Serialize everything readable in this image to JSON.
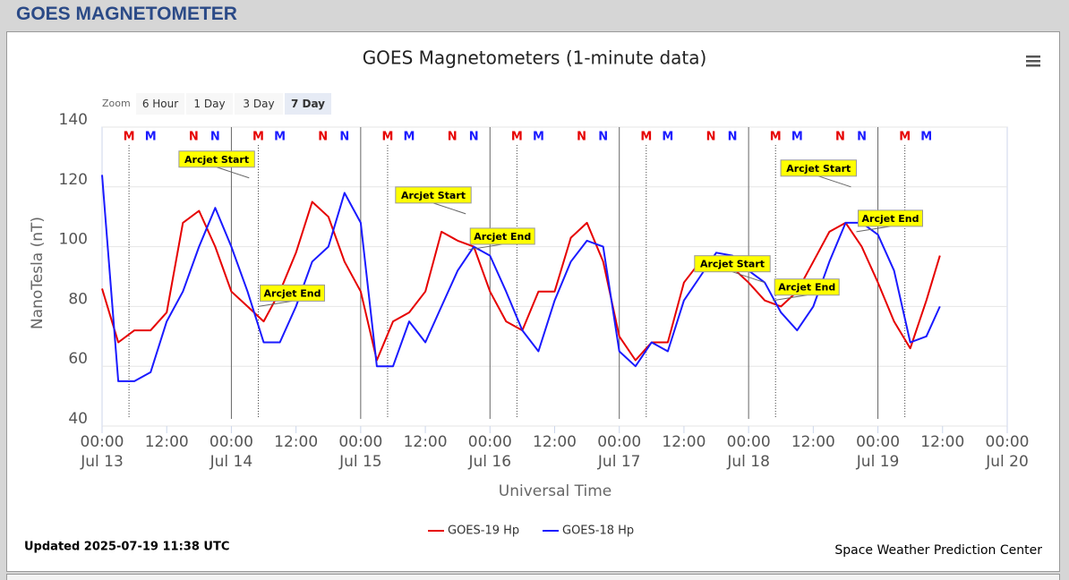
{
  "header": {
    "title": "GOES MAGNETOMETER"
  },
  "chart_data": {
    "type": "line",
    "title": "GOES Magnetometers (1-minute data)",
    "zoom": {
      "label": "Zoom",
      "buttons": [
        "6 Hour",
        "1 Day",
        "3 Day",
        "7 Day"
      ],
      "selected": 3
    },
    "ylabel": "NanoTesla (nT)",
    "xlabel": "Universal Time",
    "ylim": [
      40,
      140
    ],
    "yticks": [
      40,
      60,
      80,
      100,
      120,
      140
    ],
    "xlim": [
      0,
      168
    ],
    "xticks": [
      {
        "value": 0,
        "label": "00:00\nJul 13"
      },
      {
        "value": 12,
        "label": "12:00"
      },
      {
        "value": 24,
        "label": "00:00\nJul 14"
      },
      {
        "value": 36,
        "label": "12:00"
      },
      {
        "value": 48,
        "label": "00:00\nJul 15"
      },
      {
        "value": 60,
        "label": "12:00"
      },
      {
        "value": 72,
        "label": "00:00\nJul 16"
      },
      {
        "value": 84,
        "label": "12:00"
      },
      {
        "value": 96,
        "label": "00:00\nJul 17"
      },
      {
        "value": 108,
        "label": "12:00"
      },
      {
        "value": 120,
        "label": "00:00\nJul 18"
      },
      {
        "value": 132,
        "label": "12:00"
      },
      {
        "value": 144,
        "label": "00:00\nJul 19"
      },
      {
        "value": 156,
        "label": "12:00"
      },
      {
        "value": 168,
        "label": "00:00\nJul 20"
      }
    ],
    "grid": true,
    "x": [
      0,
      3,
      6,
      9,
      12,
      15,
      18,
      21,
      24,
      27,
      30,
      33,
      36,
      39,
      42,
      45,
      48,
      51,
      54,
      57,
      60,
      63,
      66,
      69,
      72,
      75,
      78,
      81,
      84,
      87,
      90,
      93,
      96,
      99,
      102,
      105,
      108,
      111,
      114,
      117,
      120,
      123,
      126,
      129,
      132,
      135,
      138,
      141,
      144,
      147,
      150,
      153,
      155.5
    ],
    "series": [
      {
        "name": "GOES-19 Hp",
        "color": "#e60000",
        "values": [
          86,
          68,
          72,
          72,
          78,
          108,
          112,
          100,
          85,
          80,
          75,
          85,
          98,
          115,
          110,
          95,
          85,
          62,
          75,
          78,
          85,
          105,
          102,
          100,
          85,
          75,
          72,
          85,
          85,
          103,
          108,
          95,
          70,
          62,
          68,
          68,
          88,
          95,
          92,
          93,
          88,
          82,
          80,
          85,
          95,
          105,
          108,
          100,
          88,
          75,
          66,
          82,
          97
        ]
      },
      {
        "name": "GOES-18 Hp",
        "color": "#1a1aff",
        "values": [
          124,
          55,
          55,
          58,
          75,
          85,
          100,
          113,
          100,
          85,
          68,
          68,
          80,
          95,
          100,
          118,
          108,
          60,
          60,
          75,
          68,
          80,
          92,
          100,
          97,
          85,
          72,
          65,
          82,
          95,
          102,
          100,
          65,
          60,
          68,
          65,
          82,
          90,
          98,
          97,
          92,
          88,
          78,
          72,
          80,
          95,
          108,
          108,
          104,
          92,
          68,
          70,
          80
        ]
      }
    ],
    "top_markers": [
      {
        "text": "M",
        "x": 5,
        "color": "#e60000",
        "line": true
      },
      {
        "text": "M",
        "x": 9,
        "color": "#1a1aff"
      },
      {
        "text": "N",
        "x": 17,
        "color": "#e60000"
      },
      {
        "text": "N",
        "x": 21,
        "color": "#1a1aff"
      },
      {
        "text": "M",
        "x": 29,
        "color": "#e60000",
        "line": true
      },
      {
        "text": "M",
        "x": 33,
        "color": "#1a1aff"
      },
      {
        "text": "N",
        "x": 41,
        "color": "#e60000"
      },
      {
        "text": "N",
        "x": 45,
        "color": "#1a1aff"
      },
      {
        "text": "M",
        "x": 53,
        "color": "#e60000",
        "line": true
      },
      {
        "text": "M",
        "x": 57,
        "color": "#1a1aff"
      },
      {
        "text": "N",
        "x": 65,
        "color": "#e60000"
      },
      {
        "text": "N",
        "x": 69,
        "color": "#1a1aff"
      },
      {
        "text": "M",
        "x": 77,
        "color": "#e60000",
        "line": true
      },
      {
        "text": "M",
        "x": 81,
        "color": "#1a1aff"
      },
      {
        "text": "N",
        "x": 89,
        "color": "#e60000"
      },
      {
        "text": "N",
        "x": 93,
        "color": "#1a1aff"
      },
      {
        "text": "M",
        "x": 101,
        "color": "#e60000",
        "line": true
      },
      {
        "text": "M",
        "x": 105,
        "color": "#1a1aff"
      },
      {
        "text": "N",
        "x": 113,
        "color": "#e60000"
      },
      {
        "text": "N",
        "x": 117,
        "color": "#1a1aff"
      },
      {
        "text": "M",
        "x": 125,
        "color": "#e60000",
        "line": true
      },
      {
        "text": "M",
        "x": 129,
        "color": "#1a1aff"
      },
      {
        "text": "N",
        "x": 137,
        "color": "#e60000"
      },
      {
        "text": "N",
        "x": 141,
        "color": "#1a1aff"
      },
      {
        "text": "M",
        "x": 149,
        "color": "#e60000",
        "line": true
      },
      {
        "text": "M",
        "x": 153,
        "color": "#1a1aff"
      }
    ],
    "arcjets": [
      {
        "text": "Arcjet Start",
        "x": 27.3,
        "y": 123,
        "kind": "start"
      },
      {
        "text": "Arcjet End",
        "x": 29,
        "y": 80,
        "kind": "end"
      },
      {
        "text": "Arcjet Start",
        "x": 67.5,
        "y": 111,
        "kind": "start"
      },
      {
        "text": "Arcjet End",
        "x": 68,
        "y": 99,
        "kind": "end"
      },
      {
        "text": "Arcjet Start",
        "x": 123,
        "y": 88,
        "kind": "start"
      },
      {
        "text": "Arcjet End",
        "x": 124.5,
        "y": 82,
        "kind": "end"
      },
      {
        "text": "Arcjet Start",
        "x": 139,
        "y": 120,
        "kind": "start"
      },
      {
        "text": "Arcjet End",
        "x": 140,
        "y": 105,
        "kind": "end"
      }
    ],
    "updated": "Updated 2025-07-19 11:38 UTC",
    "credit": "Space Weather Prediction Center"
  }
}
